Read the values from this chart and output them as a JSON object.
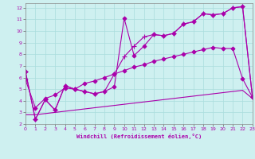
{
  "title": "",
  "xlabel": "Windchill (Refroidissement éolien,°C)",
  "ylabel": "",
  "bg_color": "#cef0f0",
  "grid_color": "#aadddd",
  "line_color": "#aa00aa",
  "xlim": [
    0,
    23
  ],
  "ylim": [
    2,
    12.4
  ],
  "xticks": [
    0,
    1,
    2,
    3,
    4,
    5,
    6,
    7,
    8,
    9,
    10,
    11,
    12,
    13,
    14,
    15,
    16,
    17,
    18,
    19,
    20,
    21,
    22,
    23
  ],
  "yticks": [
    2,
    3,
    4,
    5,
    6,
    7,
    8,
    9,
    10,
    11,
    12
  ],
  "series": [
    {
      "x": [
        0,
        1,
        2,
        3,
        4,
        5,
        6,
        7,
        8,
        9,
        10,
        11,
        12,
        13,
        14,
        15,
        16,
        17,
        18,
        19,
        20,
        21,
        22,
        23
      ],
      "y": [
        6.5,
        2.4,
        4.1,
        3.2,
        5.3,
        5.0,
        4.8,
        4.6,
        4.8,
        5.2,
        11.1,
        7.9,
        8.7,
        9.7,
        9.6,
        9.8,
        10.6,
        10.8,
        11.5,
        11.4,
        11.5,
        12.0,
        12.1,
        4.3
      ],
      "marker": "D",
      "markersize": 2.5,
      "linewidth": 0.8
    },
    {
      "x": [
        0,
        1,
        2,
        3,
        4,
        5,
        6,
        7,
        8,
        9,
        10,
        11,
        12,
        13,
        14,
        15,
        16,
        17,
        18,
        19,
        20,
        21,
        22,
        23
      ],
      "y": [
        6.5,
        2.4,
        4.1,
        3.2,
        5.3,
        5.0,
        4.8,
        4.6,
        4.8,
        6.3,
        7.8,
        8.7,
        9.5,
        9.7,
        9.6,
        9.8,
        10.6,
        10.8,
        11.5,
        11.4,
        11.5,
        12.0,
        12.1,
        4.3
      ],
      "marker": "+",
      "markersize": 4,
      "linewidth": 0.8
    },
    {
      "x": [
        0,
        1,
        2,
        3,
        4,
        5,
        6,
        7,
        8,
        9,
        10,
        11,
        12,
        13,
        14,
        15,
        16,
        17,
        18,
        19,
        20,
        21,
        22,
        23
      ],
      "y": [
        2.8,
        2.8,
        2.9,
        3.0,
        3.1,
        3.2,
        3.3,
        3.4,
        3.5,
        3.6,
        3.7,
        3.8,
        3.9,
        4.0,
        4.1,
        4.2,
        4.3,
        4.4,
        4.5,
        4.6,
        4.7,
        4.8,
        4.9,
        4.2
      ],
      "marker": null,
      "markersize": 0,
      "linewidth": 0.8
    },
    {
      "x": [
        0,
        1,
        2,
        3,
        4,
        5,
        6,
        7,
        8,
        9,
        10,
        11,
        12,
        13,
        14,
        15,
        16,
        17,
        18,
        19,
        20,
        21,
        22,
        23
      ],
      "y": [
        5.8,
        3.4,
        4.2,
        4.5,
        5.1,
        5.0,
        5.5,
        5.7,
        6.0,
        6.3,
        6.6,
        6.9,
        7.1,
        7.4,
        7.6,
        7.8,
        8.0,
        8.2,
        8.4,
        8.6,
        8.5,
        8.5,
        5.9,
        4.3
      ],
      "marker": "D",
      "markersize": 2.5,
      "linewidth": 0.8
    }
  ]
}
